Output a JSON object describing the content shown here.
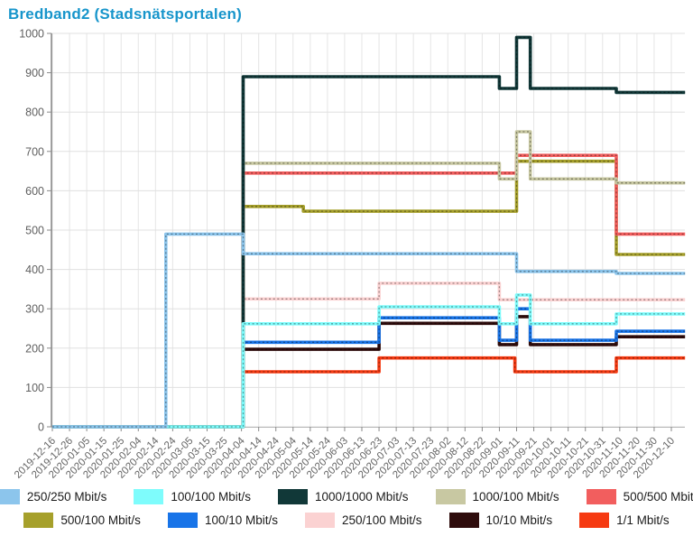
{
  "title": "Bredband2 (Stadsnätsportalen)",
  "title_color": "#1795cb",
  "chart_data": {
    "type": "line",
    "subtype": "step-after",
    "title": "Bredband2 (Stadsnätsportalen)",
    "ylabel": "",
    "xlabel": "",
    "ylim": [
      0,
      1000
    ],
    "y_ticks": [
      0,
      100,
      200,
      300,
      400,
      500,
      600,
      700,
      800,
      900,
      1000
    ],
    "grid": true,
    "legend_position": "bottom",
    "x_tick_interval_days": 10,
    "x_end_day": 368,
    "x_ticks": [
      "2019-12-16",
      "2019-12-26",
      "2020-01-05",
      "2020-01-15",
      "2020-01-25",
      "2020-02-04",
      "2020-02-14",
      "2020-02-24",
      "2020-03-05",
      "2020-03-15",
      "2020-03-25",
      "2020-04-04",
      "2020-04-14",
      "2020-04-24",
      "2020-05-04",
      "2020-05-14",
      "2020-05-24",
      "2020-06-03",
      "2020-06-13",
      "2020-06-23",
      "2020-07-03",
      "2020-07-13",
      "2020-07-23",
      "2020-08-02",
      "2020-08-12",
      "2020-08-22",
      "2020-09-01",
      "2020-09-11",
      "2020-09-21",
      "2020-10-01",
      "2020-10-11",
      "2020-10-21",
      "2020-10-31",
      "2020-11-10",
      "2020-11-20",
      "2020-11-30",
      "2020-12-10"
    ],
    "series": [
      {
        "name": "250/250 Mbit/s",
        "color": "#8cc5ec",
        "points": [
          {
            "date": "2019-12-16",
            "day": 0,
            "value": 0
          },
          {
            "date": "2020-02-20",
            "day": 66,
            "value": 490
          },
          {
            "date": "2020-04-05",
            "day": 111,
            "value": 440
          },
          {
            "date": "2020-09-11",
            "day": 270,
            "value": 395
          },
          {
            "date": "2020-11-08",
            "day": 328,
            "value": 390
          }
        ]
      },
      {
        "name": "100/100 Mbit/s",
        "color": "#7efcfc",
        "points": [
          {
            "date": "2019-12-16",
            "day": 0,
            "value": 0
          },
          {
            "date": "2020-04-05",
            "day": 111,
            "value": 262
          },
          {
            "date": "2020-06-23",
            "day": 190,
            "value": 305
          },
          {
            "date": "2020-09-01",
            "day": 260,
            "value": 262
          },
          {
            "date": "2020-09-11",
            "day": 270,
            "value": 335
          },
          {
            "date": "2020-09-19",
            "day": 278,
            "value": 262
          },
          {
            "date": "2020-11-08",
            "day": 328,
            "value": 287
          }
        ]
      },
      {
        "name": "1000/1000 Mbit/s",
        "color": "#113838",
        "points": [
          {
            "date": "2019-12-16",
            "day": 0,
            "value": 0
          },
          {
            "date": "2020-04-05",
            "day": 111,
            "value": 890
          },
          {
            "date": "2020-09-01",
            "day": 260,
            "value": 860
          },
          {
            "date": "2020-09-11",
            "day": 270,
            "value": 990
          },
          {
            "date": "2020-09-19",
            "day": 278,
            "value": 860
          },
          {
            "date": "2020-11-08",
            "day": 328,
            "value": 850
          }
        ]
      },
      {
        "name": "1000/100 Mbit/s",
        "color": "#c8c8a2",
        "points": [
          {
            "date": "2019-12-16",
            "day": 0,
            "value": 0
          },
          {
            "date": "2020-04-05",
            "day": 111,
            "value": 670
          },
          {
            "date": "2020-09-01",
            "day": 260,
            "value": 630
          },
          {
            "date": "2020-09-11",
            "day": 270,
            "value": 750
          },
          {
            "date": "2020-09-19",
            "day": 278,
            "value": 630
          },
          {
            "date": "2020-11-08",
            "day": 328,
            "value": 620
          }
        ]
      },
      {
        "name": "500/500 Mbit/s",
        "color": "#f25e5e",
        "points": [
          {
            "date": "2019-12-16",
            "day": 0,
            "value": 0
          },
          {
            "date": "2020-04-05",
            "day": 111,
            "value": 645
          },
          {
            "date": "2020-09-11",
            "day": 270,
            "value": 690
          },
          {
            "date": "2020-11-08",
            "day": 328,
            "value": 490
          }
        ]
      },
      {
        "name": "500/100 Mbit/s",
        "color": "#a6a02b",
        "points": [
          {
            "date": "2019-12-16",
            "day": 0,
            "value": 0
          },
          {
            "date": "2020-04-05",
            "day": 111,
            "value": 560
          },
          {
            "date": "2020-05-10",
            "day": 146,
            "value": 548
          },
          {
            "date": "2020-09-11",
            "day": 270,
            "value": 675
          },
          {
            "date": "2020-11-08",
            "day": 328,
            "value": 438
          }
        ]
      },
      {
        "name": "100/10 Mbit/s",
        "color": "#1874e8",
        "points": [
          {
            "date": "2019-12-16",
            "day": 0,
            "value": 0
          },
          {
            "date": "2020-04-05",
            "day": 111,
            "value": 215
          },
          {
            "date": "2020-06-23",
            "day": 190,
            "value": 277
          },
          {
            "date": "2020-09-01",
            "day": 260,
            "value": 220
          },
          {
            "date": "2020-09-11",
            "day": 270,
            "value": 300
          },
          {
            "date": "2020-09-19",
            "day": 278,
            "value": 220
          },
          {
            "date": "2020-11-08",
            "day": 328,
            "value": 243
          }
        ]
      },
      {
        "name": "250/100 Mbit/s",
        "color": "#fbd2d2",
        "points": [
          {
            "date": "2019-12-16",
            "day": 0,
            "value": 0
          },
          {
            "date": "2020-04-05",
            "day": 111,
            "value": 325
          },
          {
            "date": "2020-06-23",
            "day": 190,
            "value": 365
          },
          {
            "date": "2020-09-01",
            "day": 260,
            "value": 323
          }
        ]
      },
      {
        "name": "10/10 Mbit/s",
        "color": "#2f0c0c",
        "points": [
          {
            "date": "2019-12-16",
            "day": 0,
            "value": 0
          },
          {
            "date": "2020-04-05",
            "day": 111,
            "value": 197
          },
          {
            "date": "2020-06-23",
            "day": 190,
            "value": 263
          },
          {
            "date": "2020-09-01",
            "day": 260,
            "value": 209
          },
          {
            "date": "2020-09-11",
            "day": 270,
            "value": 280
          },
          {
            "date": "2020-09-19",
            "day": 278,
            "value": 209
          },
          {
            "date": "2020-11-08",
            "day": 328,
            "value": 229
          }
        ]
      },
      {
        "name": "1/1 Mbit/s",
        "color": "#f63a12",
        "points": [
          {
            "date": "2019-12-16",
            "day": 0,
            "value": 0
          },
          {
            "date": "2020-04-05",
            "day": 111,
            "value": 140
          },
          {
            "date": "2020-06-23",
            "day": 190,
            "value": 175
          },
          {
            "date": "2020-09-10",
            "day": 269,
            "value": 140
          },
          {
            "date": "2020-11-08",
            "day": 328,
            "value": 175
          }
        ]
      }
    ]
  }
}
